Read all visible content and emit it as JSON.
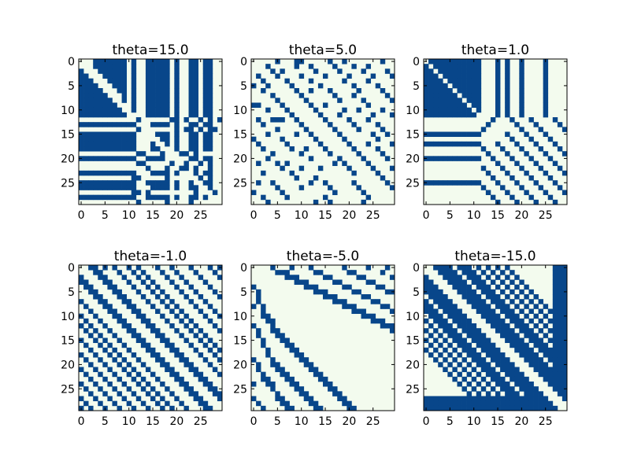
{
  "figure": {
    "background": "#ffffff"
  },
  "colors": {
    "on": "#08468a",
    "off": "#f3fbee",
    "frame": "#000000"
  },
  "chart_data": [
    {
      "type": "heatmap",
      "title": "theta=15.0",
      "xticks": [
        0,
        5,
        10,
        15,
        20,
        25
      ],
      "yticks": [
        0,
        5,
        10,
        15,
        20,
        25
      ],
      "xlim": [
        -0.5,
        29.5
      ],
      "ylim": [
        29.5,
        -0.5
      ],
      "grid": false,
      "values_description": "30x30 symmetric binary adjacency matrix (1 = dark blue, 0 = light)",
      "matrix": [
        "000111111101001111101001101100",
        "000111111101001111101001101100",
        "100011111101001111101001101100",
        "110001111101001111101001101100",
        "111000111101001111101001101100",
        "111100011101001111101001101100",
        "111110001101001111101001101100",
        "111111000101001111101001101100",
        "111111100101001111101001101100",
        "111111110001001111101001101100",
        "111111111001001111101001101100",
        "111111111100001111101001101100",
        "000000000000100000011010010101",
        "111111111111000111101001101100",
        "000000000000100000001011010110",
        "111111111111000011101001101100",
        "111111111111000001101001101100",
        "111111111111000100101001101100",
        "111111111111000110001001101100",
        "000000000000110001000110100000",
        "111111111111001111000001101100",
        "000000000000110000010010010100",
        "000000000000001000100110100100",
        "111111111111000111101000101100",
        "000000000001100000100000010100",
        "111111111111001111101001001100",
        "111111111111000111101001100100",
        "000000000001101000000000100010",
        "111111111111001111101001101000",
        "000000000000100000100001000000"
      ]
    },
    {
      "type": "heatmap",
      "title": "theta=5.0",
      "xticks": [
        0,
        5,
        10,
        15,
        20,
        25
      ],
      "yticks": [
        0,
        5,
        10,
        15,
        20,
        25
      ],
      "xlim": [
        -0.5,
        29.5
      ],
      "ylim": [
        29.5,
        -0.5
      ],
      "grid": false,
      "values_description": "30x30 symmetric binary adjacency matrix",
      "matrix": [
        "000001000110000010010000000100",
        "000100000100100001000100100000",
        "000010100000010000100001000010",
        "010001000010000100001000010001",
        "001000010000100000010000100000",
        "100100001000001000000100001000",
        "001000000100100010000010000100",
        "000010000010000001000100000010",
        "000001000001000000100001000001",
        "110000100000100100000000100000",
        "000100010000010000010010000100",
        "000000001000001000100000010001",
        "010011100100000100001000100000",
        "001000000010000010000100001000",
        "000001000001000001000010000100",
        "000100000100100000100000010010",
        "100000100000010000010000001000",
        "010000010000001000001000100001",
        "001000001001000100000100001000",
        "000010000010000010000010000100",
        "000100000000100000100001000010",
        "010001010000000001010000100000",
        "000000100010001000001000010001",
        "001000001000000000000100001000",
        "000000000100010000000000000100",
        "010010000000100100000100000010",
        "000001000010000010000010000001",
        "100000100000000001000001000000",
        "001000010000000100000000100000",
        "000100000000010010000001000000"
      ]
    },
    {
      "type": "heatmap",
      "title": "theta=1.0",
      "xticks": [
        0,
        5,
        10,
        15,
        20,
        25
      ],
      "yticks": [
        0,
        5,
        10,
        15,
        20,
        25
      ],
      "xlim": [
        -0.5,
        29.5
      ],
      "ylim": [
        29.5,
        -0.5
      ],
      "grid": false,
      "values_description": "30x30 symmetric binary adjacency matrix",
      "matrix": [
        "011111111111000101001000010000",
        "101111111111000101001000010000",
        "110111111111000101001000010000",
        "111011111111000101001000010000",
        "111101111111000101001000010000",
        "111110111111000101001000010000",
        "111111011111000101001000010000",
        "111111101111000101001000010000",
        "111111110111000101001000010000",
        "111111111011000101001000010000",
        "111111111101000101001000010000",
        "111111111110000101001000010000",
        "000000000000001000100010000100",
        "000000000000010000010001000010",
        "000000000000100000001000100001",
        "111111111111000001000100010000",
        "000000000000000000100010001000",
        "111111111111000100010001000100",
        "000000000000100010001000100010",
        "000000000000010001000100010001",
        "111111111111001000100010001000",
        "000000000000000100010001000100",
        "000000000000100010001000100010",
        "000000000000010001000100010001",
        "000000000000001000100010001000",
        "111111111111000100010001000100",
        "000000000000100010001000100010",
        "000000000000010001000100010001",
        "000000000000001000100010001000",
        "000000000000000100010001000100"
      ]
    },
    {
      "type": "heatmap",
      "title": "theta=-1.0",
      "xticks": [
        0,
        5,
        10,
        15,
        20,
        25
      ],
      "yticks": [
        0,
        5,
        10,
        15,
        20,
        25
      ],
      "xlim": [
        -0.5,
        29.5
      ],
      "ylim": [
        29.5,
        -0.5
      ],
      "grid": false,
      "values_description": "30x30 symmetric binary adjacency matrix",
      "matrix": [
        "001101010010100010010001000101",
        "000110001001010001001000100010",
        "100011000100101000100100010001",
        "110001100010010100010010001000",
        "011000110001001010001001000100",
        "001100011000100101000100100010",
        "000110001100010010100010010001",
        "100011000110001001010001001000",
        "010001100011000100101000100100",
        "001000110001100010010100010010",
        "100100011000110001001010001001",
        "010010001100011000100101000100",
        "101001000110001100010010100010",
        "010100100011000110001001010001",
        "001010010001100011000100101000",
        "100101001000110001100010010100",
        "010010100100011000110001001010",
        "001001010010001100011000100101",
        "100100101001000110001100010010",
        "010010010100100011000110001001",
        "001001001010010001100011000100",
        "100100100101001000110001100010",
        "010010010010100100011000110001",
        "001001001001010010001100011000",
        "100100100100101001000110001100",
        "010010010010010100100011000110",
        "001001001001001010010001100011",
        "100100100100100101001000110001",
        "010010010010010010100100011000",
        "101001001001001001010010001100"
      ]
    },
    {
      "type": "heatmap",
      "title": "theta=-5.0",
      "xticks": [
        0,
        5,
        10,
        15,
        20,
        25
      ],
      "yticks": [
        0,
        5,
        10,
        15,
        20,
        25
      ],
      "xlim": [
        -0.5,
        29.5
      ],
      "ylim": [
        29.5,
        -0.5
      ],
      "grid": false,
      "values_description": "30x30 symmetric binary adjacency matrix",
      "matrix": [
        "000010001000100000010000100010",
        "000001110000011000001100000100",
        "000000011100000110000011000001",
        "000000000111000001100000110000",
        "100000000001110000011000001100",
        "010000000000011100000110000011",
        "010000000000000111000001100000",
        "010000000000000001110000011000",
        "101000000000000000011100000110",
        "001000000000000000000111000001",
        "001100000000000000000001110000",
        "000110000000000000000000011100",
        "100010000000000000000000000111",
        "010011000000000000000000000001",
        "010001100000000000000000000000",
        "001000110000000000000000000000",
        "001000011000000000000000000000",
        "000100001100000000000000000000",
        "000100000110000000000000000000",
        "100010000011000000000000000000",
        "010011000001100000000000000000",
        "010001100000110000000000000000",
        "001000110000011000000000000000",
        "001100011000001100000000000000",
        "100110001100000110000000000000",
        "000010000110000011000000000000",
        "000001000011000001100000000000",
        "100001100001100000110000000000",
        "010000110000110000011000000000",
        "001000011000011000001100000000"
      ]
    },
    {
      "type": "heatmap",
      "title": "theta=-15.0",
      "xticks": [
        0,
        5,
        10,
        15,
        20,
        25
      ],
      "yticks": [
        0,
        5,
        10,
        15,
        20,
        25
      ],
      "xlim": [
        -0.5,
        29.5
      ],
      "ylim": [
        29.5,
        -0.5
      ],
      "grid": false,
      "values_description": "30x30 symmetric binary adjacency matrix",
      "matrix": [
        "001111011101010101000000000111",
        "000111101110101010100000000111",
        "100011110111010101010000000111",
        "110001111011101010101000000111",
        "111000111101110101010100000111",
        "111100011110111010101010000111",
        "011110001111011101010101000111",
        "101111000111101110101010100111",
        "110111100011110111010101010111",
        "111011110001111011101010101111",
        "011101111000111101110101010111",
        "101110111100011110111010101111",
        "010111011110001111011101010111",
        "101011101111000111101110101111",
        "010101110111100011110111010111",
        "101010111011110001111011101111",
        "010101011101111000111101110111",
        "101010101110111100011110111111",
        "010101010111011110001111011111",
        "001010101011101111000111101111",
        "000101010101110111100011110111",
        "000010101010111011110001111111",
        "000001010101011101111000111111",
        "000000101010101110111100011111",
        "000000010101010111011110001111",
        "000000001010101011101111000111",
        "000000000101010101110111100011",
        "111111111111111111111111110001",
        "111111111111111111111111111000",
        "111111111111111111111111111100"
      ]
    }
  ]
}
